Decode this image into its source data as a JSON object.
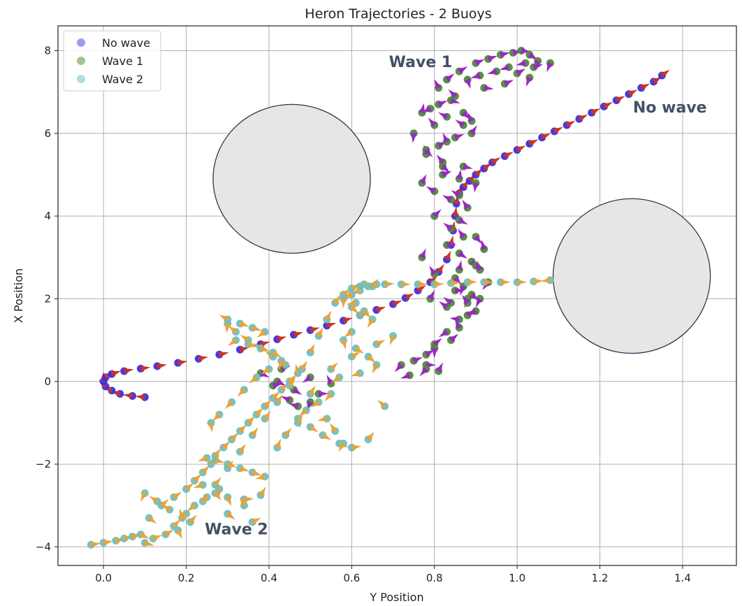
{
  "chart_data": {
    "type": "scatter",
    "title": "Heron Trajectories - 2 Buoys",
    "xlabel": "Y Position",
    "ylabel": "X Position",
    "xlim": [
      -0.11,
      1.53
    ],
    "ylim": [
      -4.45,
      8.6
    ],
    "xticks": [
      0.0,
      0.2,
      0.4,
      0.6,
      0.8,
      1.0,
      1.2,
      1.4
    ],
    "xtick_labels": [
      "0.0",
      "0.2",
      "0.4",
      "0.6",
      "0.8",
      "1.0",
      "1.2",
      "1.4"
    ],
    "yticks": [
      -4,
      -2,
      0,
      2,
      4,
      6,
      8
    ],
    "ytick_labels": [
      "−4",
      "−2",
      "0",
      "2",
      "4",
      "6",
      "8"
    ],
    "grid": true,
    "legend_position": "top-left",
    "legend": [
      {
        "label": "No wave",
        "color": "#4a4ae6"
      },
      {
        "label": "Wave 1",
        "color": "#5a8f3a"
      },
      {
        "label": "Wave 2",
        "color": "#6cc4c4"
      }
    ],
    "buoys": [
      {
        "center": [
          0.455,
          4.9
        ],
        "radius_x": 0.19,
        "radius_y": 1.8
      },
      {
        "center": [
          1.277,
          2.55
        ],
        "radius_x": 0.19,
        "radius_y": 1.87
      }
    ],
    "annotations": [
      {
        "text": "Wave 1",
        "at": [
          0.69,
          7.6
        ]
      },
      {
        "text": "No wave",
        "at": [
          1.28,
          6.5
        ]
      },
      {
        "text": "Wave 2",
        "at": [
          0.245,
          -3.7
        ]
      }
    ],
    "series": [
      {
        "name": "No wave",
        "marker_color": "#3a2ee6",
        "arrow_color": "#cc3322",
        "x": [
          0.1,
          0.07,
          0.04,
          0.02,
          0.005,
          0.0,
          0.005,
          0.02,
          0.05,
          0.09,
          0.13,
          0.18,
          0.23,
          0.28,
          0.33,
          0.38,
          0.42,
          0.46,
          0.5,
          0.54,
          0.58,
          0.62,
          0.66,
          0.7,
          0.73,
          0.76,
          0.79,
          0.81,
          0.83,
          0.84,
          0.845,
          0.85,
          0.853,
          0.86,
          0.87,
          0.885,
          0.9,
          0.92,
          0.94,
          0.97,
          1.0,
          1.03,
          1.06,
          1.09,
          1.12,
          1.15,
          1.18,
          1.21,
          1.24,
          1.27,
          1.3,
          1.33,
          1.35
        ],
        "y": [
          -0.38,
          -0.35,
          -0.3,
          -0.22,
          -0.12,
          0.0,
          0.1,
          0.18,
          0.25,
          0.31,
          0.37,
          0.45,
          0.55,
          0.65,
          0.77,
          0.9,
          1.02,
          1.13,
          1.24,
          1.35,
          1.47,
          1.6,
          1.73,
          1.87,
          2.02,
          2.2,
          2.4,
          2.65,
          2.95,
          3.3,
          3.65,
          4.0,
          4.3,
          4.55,
          4.7,
          4.85,
          5.0,
          5.15,
          5.3,
          5.45,
          5.6,
          5.75,
          5.9,
          6.05,
          6.2,
          6.35,
          6.5,
          6.65,
          6.8,
          6.95,
          7.1,
          7.25,
          7.4
        ]
      },
      {
        "name": "Wave 1",
        "marker_color": "#4f8a3a",
        "arrow_color": "#9b27c4",
        "x": [
          0.38,
          0.42,
          0.46,
          0.5,
          0.45,
          0.41,
          0.52,
          0.55,
          0.5,
          0.47,
          0.43,
          0.78,
          0.81,
          0.8,
          0.84,
          0.86,
          0.83,
          0.8,
          0.88,
          0.9,
          0.86,
          0.83,
          0.79,
          0.85,
          0.88,
          0.84,
          0.8,
          0.77,
          0.83,
          0.86,
          0.89,
          0.91,
          0.87,
          0.84,
          0.8,
          0.86,
          0.9,
          0.92,
          0.88,
          0.84,
          0.8,
          0.77,
          0.82,
          0.87,
          0.9,
          0.86,
          0.82,
          0.78,
          0.81,
          0.85,
          0.89,
          0.87,
          0.83,
          0.79,
          0.75,
          0.78,
          0.82,
          0.86,
          0.83,
          0.8,
          0.77,
          0.81,
          0.84,
          0.87,
          0.89,
          0.85,
          0.81,
          0.83,
          0.86,
          0.9,
          0.93,
          0.96,
          0.99,
          1.01,
          1.03,
          1.05,
          1.02,
          0.98,
          0.95,
          0.91,
          0.88,
          0.92,
          0.97,
          1.0,
          1.04,
          1.08,
          1.03,
          0.87,
          0.85,
          0.89,
          0.91,
          0.88,
          0.86,
          0.9,
          0.93,
          0.72,
          0.75,
          0.78,
          0.8,
          0.78,
          0.74
        ],
        "y": [
          0.2,
          0.0,
          -0.2,
          -0.5,
          -0.45,
          -0.1,
          -0.3,
          -0.05,
          0.1,
          -0.6,
          0.3,
          0.4,
          0.25,
          0.8,
          1.0,
          1.3,
          1.2,
          0.9,
          1.6,
          1.7,
          1.5,
          1.8,
          2.0,
          2.2,
          2.0,
          1.9,
          2.6,
          3.0,
          3.3,
          3.1,
          2.9,
          2.7,
          3.5,
          3.7,
          4.0,
          3.9,
          3.5,
          3.2,
          4.2,
          4.4,
          4.6,
          4.8,
          5.0,
          5.2,
          4.8,
          4.5,
          5.3,
          5.5,
          5.7,
          5.9,
          6.0,
          6.2,
          6.4,
          6.6,
          6.0,
          5.6,
          5.2,
          4.9,
          5.8,
          6.2,
          6.5,
          6.7,
          6.8,
          6.5,
          6.3,
          6.9,
          7.1,
          7.3,
          7.5,
          7.7,
          7.8,
          7.9,
          7.95,
          8.0,
          7.9,
          7.75,
          7.7,
          7.6,
          7.5,
          7.4,
          7.3,
          7.1,
          7.2,
          7.45,
          7.6,
          7.7,
          7.35,
          2.3,
          2.5,
          2.1,
          2.0,
          1.9,
          2.7,
          2.8,
          2.4,
          0.4,
          0.5,
          0.65,
          0.8,
          0.3,
          0.15
        ]
      },
      {
        "name": "Wave 2",
        "marker_color": "#6cc0c4",
        "arrow_color": "#e8a33a",
        "x": [
          -0.03,
          0.0,
          0.03,
          0.05,
          0.07,
          0.09,
          0.1,
          0.12,
          0.15,
          0.17,
          0.19,
          0.16,
          0.13,
          0.1,
          0.11,
          0.14,
          0.17,
          0.2,
          0.22,
          0.24,
          0.26,
          0.27,
          0.29,
          0.31,
          0.33,
          0.35,
          0.37,
          0.39,
          0.41,
          0.43,
          0.45,
          0.47,
          0.44,
          0.41,
          0.38,
          0.35,
          0.32,
          0.3,
          0.28,
          0.25,
          0.22,
          0.2,
          0.18,
          0.21,
          0.24,
          0.27,
          0.3,
          0.33,
          0.36,
          0.39,
          0.42,
          0.45,
          0.48,
          0.5,
          0.52,
          0.54,
          0.56,
          0.58,
          0.6,
          0.62,
          0.63,
          0.64,
          0.66,
          0.62,
          0.6,
          0.58,
          0.6,
          0.62,
          0.65,
          0.68,
          0.72,
          0.76,
          0.8,
          0.84,
          0.88,
          0.92,
          0.96,
          1.0,
          1.04,
          1.08,
          0.61,
          0.63,
          0.65,
          0.6,
          0.58,
          0.61,
          0.64,
          0.66,
          0.62,
          0.57,
          0.55,
          0.52,
          0.49,
          0.47,
          0.5,
          0.53,
          0.57,
          0.6,
          0.64,
          0.68,
          0.3,
          0.33,
          0.36,
          0.39,
          0.32,
          0.35,
          0.38,
          0.41,
          0.43,
          0.4,
          0.37,
          0.34,
          0.31,
          0.28,
          0.26,
          0.3,
          0.34,
          0.38,
          0.42,
          0.44,
          0.47,
          0.5,
          0.55,
          0.6,
          0.66,
          0.7,
          0.58,
          0.56,
          0.54,
          0.25,
          0.27,
          0.3,
          0.33,
          0.36,
          0.39,
          0.24,
          0.27,
          0.3,
          0.36,
          0.34
        ],
        "y": [
          -3.95,
          -3.9,
          -3.85,
          -3.8,
          -3.75,
          -3.7,
          -3.9,
          -3.8,
          -3.7,
          -3.5,
          -3.3,
          -3.1,
          -2.9,
          -2.7,
          -3.3,
          -3.0,
          -2.8,
          -2.6,
          -2.4,
          -2.2,
          -2.0,
          -1.8,
          -1.6,
          -1.4,
          -1.2,
          -1.0,
          -0.8,
          -0.6,
          -0.4,
          -0.2,
          0.0,
          0.2,
          0.4,
          0.6,
          0.8,
          1.0,
          1.2,
          1.4,
          -2.6,
          -2.8,
          -3.0,
          -3.2,
          -3.6,
          -3.4,
          -2.9,
          -2.5,
          -2.1,
          -1.7,
          -1.3,
          -0.9,
          -0.5,
          -0.1,
          0.3,
          0.7,
          1.1,
          1.5,
          1.9,
          2.1,
          2.25,
          2.3,
          2.35,
          2.3,
          2.35,
          2.2,
          2.1,
          2.0,
          1.8,
          1.6,
          2.3,
          2.35,
          2.35,
          2.35,
          2.35,
          2.38,
          2.4,
          2.4,
          2.4,
          2.4,
          2.42,
          2.45,
          1.9,
          1.7,
          1.5,
          1.2,
          1.0,
          0.8,
          0.6,
          0.4,
          0.2,
          0.1,
          -0.3,
          -0.5,
          -0.7,
          -0.9,
          -1.1,
          -1.3,
          -1.5,
          -1.6,
          -1.4,
          -0.6,
          1.5,
          1.4,
          1.3,
          1.2,
          1.0,
          0.9,
          0.8,
          0.7,
          0.5,
          0.3,
          0.1,
          -0.2,
          -0.5,
          -0.8,
          -1.0,
          -2.8,
          -2.85,
          -2.75,
          -1.6,
          -1.3,
          -1.0,
          -0.3,
          0.3,
          0.6,
          0.9,
          1.1,
          -1.5,
          -1.2,
          -0.9,
          -1.85,
          -1.9,
          -2.0,
          -2.1,
          -2.2,
          -2.3,
          -2.5,
          -2.7,
          -3.2,
          -3.4,
          -3.0
        ]
      }
    ]
  }
}
